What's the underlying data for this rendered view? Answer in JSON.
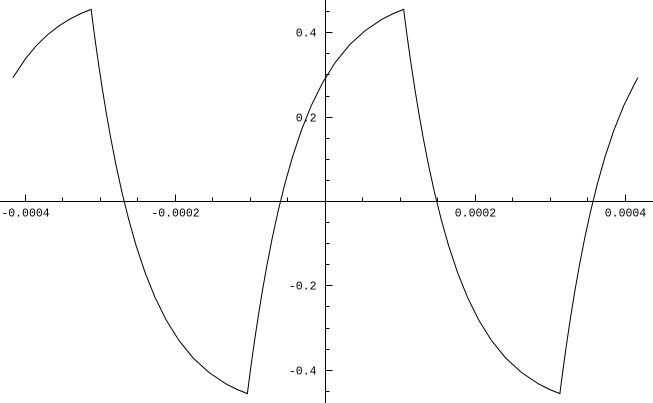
{
  "page": {
    "background": "#ffffff"
  },
  "chart_data": {
    "type": "line",
    "title": "",
    "xlabel": "",
    "ylabel": "",
    "grid": false,
    "legend": false,
    "axis_color": "#000000",
    "curve_color": "#000000",
    "x_range": [
      -0.000434,
      0.00043667
    ],
    "y_range": [
      -0.4775,
      0.4775
    ],
    "x_ticks_major": [
      {
        "value": -0.0004,
        "label": "-0.0004"
      },
      {
        "value": -0.0002,
        "label": "-0.0002"
      },
      {
        "value": 0.0002,
        "label": "0.0002"
      },
      {
        "value": 0.0004,
        "label": "0.0004"
      }
    ],
    "x_ticks_minor": [
      -0.00035,
      -0.0003,
      -0.00025,
      -0.00015,
      -0.0001,
      -5e-05,
      5e-05,
      0.0001,
      0.00015,
      0.00025,
      0.0003,
      0.00035
    ],
    "y_ticks_major": [
      {
        "value": 0.4,
        "label": "0.4"
      },
      {
        "value": 0.2,
        "label": "0.2"
      },
      {
        "value": -0.2,
        "label": "-0.2"
      },
      {
        "value": -0.4,
        "label": "-0.4"
      }
    ],
    "y_ticks_minor": [
      0.45,
      0.35,
      0.3,
      0.25,
      0.15,
      0.1,
      0.05,
      -0.05,
      -0.1,
      -0.15,
      -0.25,
      -0.3,
      -0.35,
      -0.45
    ],
    "series": [
      {
        "name": "curve",
        "color": "#000000",
        "points": [
          [
            -0.00041667,
            0.2937
          ],
          [
            -0.0004,
            0.3384
          ],
          [
            -0.000385,
            0.3704
          ],
          [
            -0.00037,
            0.3961
          ],
          [
            -0.000355,
            0.4166
          ],
          [
            -0.00034,
            0.4331
          ],
          [
            -0.000325,
            0.4464
          ],
          [
            -0.0003125,
            0.4553
          ],
          [
            -0.0003095,
            0.4141
          ],
          [
            -0.0003065,
            0.3747
          ],
          [
            -0.0003025,
            0.3247
          ],
          [
            -0.0002975,
            0.2663
          ],
          [
            -0.0002925,
            0.212
          ],
          [
            -0.0002865,
            0.1518
          ],
          [
            -0.0002795,
            0.088
          ],
          [
            -0.0002715,
            0.0228
          ],
          [
            -0.0002625,
            -0.0419
          ],
          [
            -0.0002525,
            -0.1047
          ],
          [
            -0.0002405,
            -0.1686
          ],
          [
            -0.0002275,
            -0.2264
          ],
          [
            -0.0002125,
            -0.2805
          ],
          [
            -0.0001955,
            -0.329
          ],
          [
            -0.0001765,
            -0.3708
          ],
          [
            -0.0001555,
            -0.405
          ],
          [
            -0.0001325,
            -0.4324
          ],
          [
            -0.0001185,
            -0.4449
          ],
          [
            -0.00010417,
            -0.4553
          ],
          [
            -0.00010117,
            -0.4141
          ],
          [
            -9.817e-05,
            -0.3747
          ],
          [
            -9.417e-05,
            -0.3247
          ],
          [
            -8.917e-05,
            -0.2663
          ],
          [
            -8.417e-05,
            -0.212
          ],
          [
            -7.817e-05,
            -0.1518
          ],
          [
            -7.117e-05,
            -0.088
          ],
          [
            -6.317e-05,
            -0.0228
          ],
          [
            -5.417e-05,
            0.0419
          ],
          [
            -4.417e-05,
            0.1047
          ],
          [
            -3.217e-05,
            0.1686
          ],
          [
            -1.917e-05,
            0.2264
          ],
          [
            -4.17e-06,
            0.2805
          ],
          [
            1.283e-05,
            0.329
          ],
          [
            3.183e-05,
            0.3708
          ],
          [
            5.283e-05,
            0.405
          ],
          [
            7.583e-05,
            0.4324
          ],
          [
            8.983e-05,
            0.4449
          ],
          [
            0.00010417,
            0.4553
          ],
          [
            0.00010717,
            0.4141
          ],
          [
            0.00011017,
            0.3747
          ],
          [
            0.00011417,
            0.3247
          ],
          [
            0.00011917,
            0.2663
          ],
          [
            0.00012417,
            0.212
          ],
          [
            0.00013017,
            0.1518
          ],
          [
            0.00013717,
            0.088
          ],
          [
            0.00014517,
            0.0228
          ],
          [
            0.00015417,
            -0.0419
          ],
          [
            0.00016417,
            -0.1047
          ],
          [
            0.00017617,
            -0.1686
          ],
          [
            0.00018917,
            -0.2264
          ],
          [
            0.00020417,
            -0.2805
          ],
          [
            0.00022117,
            -0.329
          ],
          [
            0.00024017,
            -0.3708
          ],
          [
            0.00026117,
            -0.405
          ],
          [
            0.00028417,
            -0.4324
          ],
          [
            0.00029817,
            -0.4449
          ],
          [
            0.0003125,
            -0.4553
          ],
          [
            0.0003155,
            -0.4141
          ],
          [
            0.0003185,
            -0.3747
          ],
          [
            0.0003225,
            -0.3247
          ],
          [
            0.0003275,
            -0.2663
          ],
          [
            0.0003325,
            -0.212
          ],
          [
            0.0003385,
            -0.1518
          ],
          [
            0.0003455,
            -0.088
          ],
          [
            0.0003535,
            -0.0228
          ],
          [
            0.0003625,
            0.0419
          ],
          [
            0.0003725,
            0.1047
          ],
          [
            0.0003845,
            0.1686
          ],
          [
            0.0003975,
            0.2264
          ],
          [
            0.0004125,
            0.2805
          ],
          [
            0.00041667,
            0.2937
          ]
        ]
      }
    ]
  }
}
